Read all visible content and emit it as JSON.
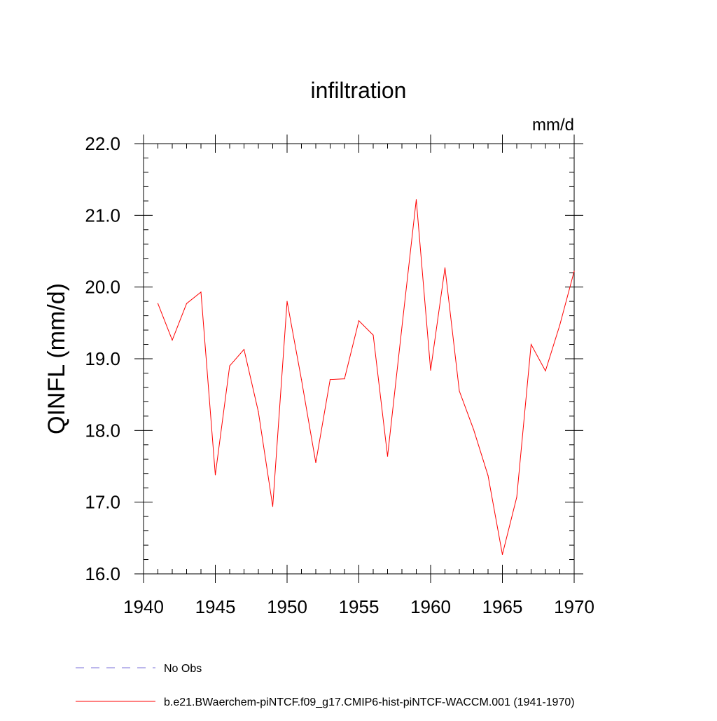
{
  "chart_data": {
    "type": "line",
    "title": "infiltration",
    "units_label": "mm/d",
    "ylabel": "QINFL  (mm/d)",
    "xlabel": "",
    "xlim": [
      1940,
      1970
    ],
    "ylim": [
      16.0,
      22.0
    ],
    "x_ticks": [
      1940,
      1945,
      1950,
      1955,
      1960,
      1965,
      1970
    ],
    "y_ticks": [
      "16.0",
      "17.0",
      "18.0",
      "19.0",
      "20.0",
      "21.0",
      "22.0"
    ],
    "grid": false,
    "legend_position": "bottom",
    "x": [
      1941,
      1942,
      1943,
      1944,
      1945,
      1946,
      1947,
      1948,
      1949,
      1950,
      1951,
      1952,
      1953,
      1954,
      1955,
      1956,
      1957,
      1958,
      1959,
      1960,
      1961,
      1962,
      1963,
      1964,
      1965,
      1966,
      1967,
      1968,
      1969,
      1970
    ],
    "series": [
      {
        "name": "b.e21.BWaerchem-piNTCF.f09_g17.CMIP6-hist-piNTCF-WACCM.001 (1941-1970)",
        "color": "#ff0000",
        "dash": "solid",
        "values": [
          19.77,
          19.26,
          19.77,
          19.93,
          17.38,
          18.9,
          19.13,
          18.26,
          16.94,
          19.8,
          18.71,
          17.55,
          18.71,
          18.72,
          19.53,
          19.33,
          17.64,
          19.44,
          21.22,
          18.84,
          20.27,
          18.55,
          18.01,
          17.37,
          16.27,
          17.07,
          19.2,
          18.83,
          19.47,
          20.22
        ]
      }
    ],
    "legend": [
      {
        "label": "No Obs",
        "color": "#7a6fd8",
        "dash": "dashed"
      },
      {
        "label": "b.e21.BWaerchem-piNTCF.f09_g17.CMIP6-hist-piNTCF-WACCM.001 (1941-1970)",
        "color": "#ff0000",
        "dash": "solid"
      }
    ]
  }
}
